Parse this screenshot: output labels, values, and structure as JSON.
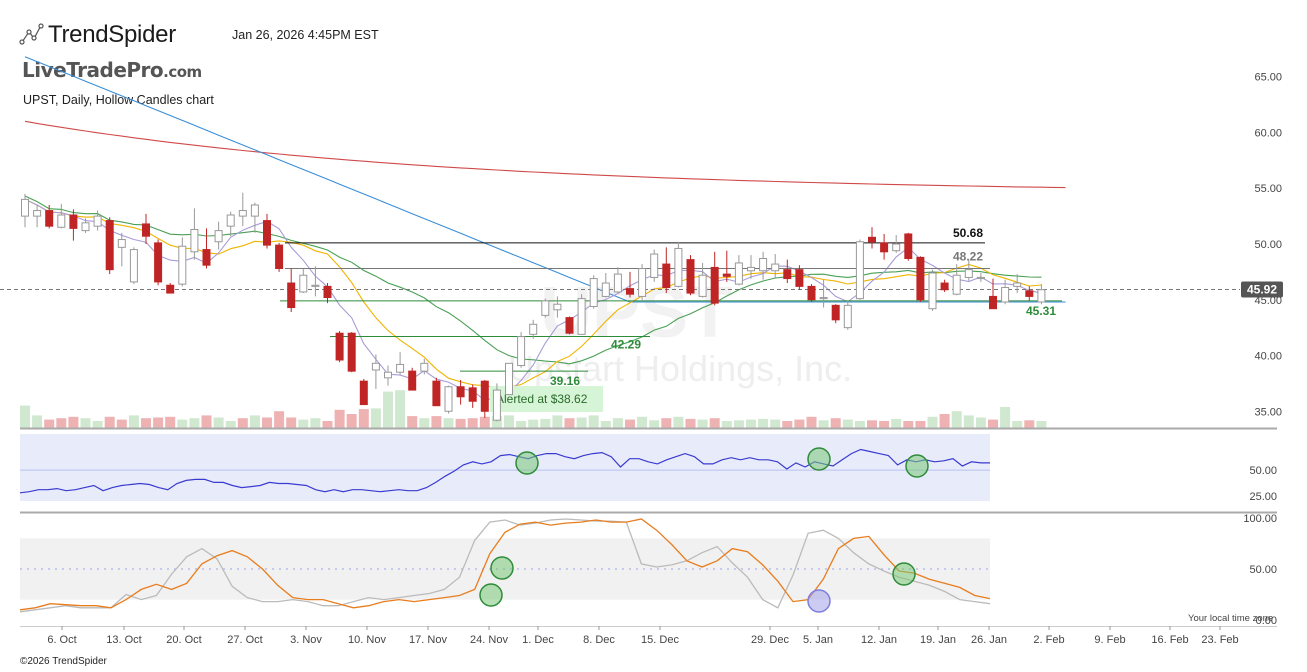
{
  "header": {
    "brand": "TrendSpider",
    "timestamp": "Jan 26, 2026 4:45PM EST",
    "site_watermark": "LiveTradePro",
    "site_watermark_tld": ".com",
    "chart_description": "UPST, Daily, Hollow Candles chart",
    "watermark_ticker": "UPST",
    "watermark_company": "Upstart Holdings, Inc.",
    "copyright": "©2026 TrendSpider",
    "timezone_note": "Your local time zone"
  },
  "colors": {
    "up": "#c8c8c8",
    "down": "#c02525",
    "ma_red": "#d04a4a",
    "ma_blue": "#3a8ed8",
    "ma_green": "#4aa055",
    "ma_yellow": "#f0b400",
    "ma_lavender": "#a89cd8",
    "level_green": "#2e8b3a",
    "rsi_line": "#3a3ad0",
    "stoch_k": "#e87d1e",
    "stoch_d": "#bbbbbb"
  },
  "chart_data": {
    "type": "candlestick",
    "symbol": "UPST",
    "interval": "Daily",
    "y_ticks": [
      "65.00",
      "60.00",
      "55.00",
      "50.00",
      "45.00",
      "40.00",
      "35.00"
    ],
    "ylim": [
      33.5,
      66.5
    ],
    "x_ticks": [
      "6. Oct",
      "13. Oct",
      "20. Oct",
      "27. Oct",
      "3. Nov",
      "10. Nov",
      "17. Nov",
      "24. Nov",
      "1. Dec",
      "8. Dec",
      "15. Dec",
      "29. Dec",
      "5. Jan",
      "12. Jan",
      "19. Jan",
      "26. Jan",
      "2. Feb",
      "9. Feb",
      "16. Feb",
      "23. Feb"
    ],
    "last_price": "45.92",
    "levels": [
      {
        "label": "50.68",
        "value": 50.1,
        "type": "resistance"
      },
      {
        "label": "48.22",
        "value": 47.8,
        "type": "neutral"
      },
      {
        "label": "45.31",
        "value": 44.9,
        "type": "support"
      },
      {
        "label": "42.29",
        "value": 41.7,
        "type": "support"
      },
      {
        "label": "39.16",
        "value": 38.6,
        "type": "support"
      }
    ],
    "alert_label": "Alerted at $38.62",
    "candles": [
      {
        "o": 52.5,
        "h": 54.5,
        "l": 51.5,
        "c": 54.0
      },
      {
        "o": 52.5,
        "h": 53.5,
        "l": 51.5,
        "c": 53.0
      },
      {
        "o": 53.0,
        "h": 53.5,
        "l": 51.4,
        "c": 51.6
      },
      {
        "o": 51.5,
        "h": 53.6,
        "l": 51.4,
        "c": 52.6
      },
      {
        "o": 52.6,
        "h": 53.1,
        "l": 50.3,
        "c": 51.4
      },
      {
        "o": 51.2,
        "h": 52.3,
        "l": 51.0,
        "c": 51.9
      },
      {
        "o": 51.6,
        "h": 53.0,
        "l": 51.2,
        "c": 52.5
      },
      {
        "o": 52.1,
        "h": 52.4,
        "l": 47.3,
        "c": 47.7
      },
      {
        "o": 49.7,
        "h": 51.0,
        "l": 48.0,
        "c": 50.4
      },
      {
        "o": 46.6,
        "h": 49.7,
        "l": 46.4,
        "c": 49.5
      },
      {
        "o": 51.8,
        "h": 52.7,
        "l": 50.0,
        "c": 50.7
      },
      {
        "o": 50.1,
        "h": 50.4,
        "l": 46.3,
        "c": 46.6
      },
      {
        "o": 46.3,
        "h": 46.5,
        "l": 45.6,
        "c": 45.6
      },
      {
        "o": 46.4,
        "h": 50.6,
        "l": 46.2,
        "c": 49.8
      },
      {
        "o": 49.3,
        "h": 53.2,
        "l": 48.6,
        "c": 51.3
      },
      {
        "o": 49.5,
        "h": 51.4,
        "l": 47.8,
        "c": 48.1
      },
      {
        "o": 50.2,
        "h": 52.0,
        "l": 49.5,
        "c": 51.2
      },
      {
        "o": 51.6,
        "h": 52.9,
        "l": 50.7,
        "c": 52.6
      },
      {
        "o": 52.5,
        "h": 54.6,
        "l": 51.6,
        "c": 53.0
      },
      {
        "o": 52.5,
        "h": 53.7,
        "l": 51.0,
        "c": 53.5
      },
      {
        "o": 52.1,
        "h": 52.7,
        "l": 49.6,
        "c": 49.9
      },
      {
        "o": 49.9,
        "h": 50.1,
        "l": 47.5,
        "c": 47.8
      },
      {
        "o": 46.5,
        "h": 47.8,
        "l": 43.9,
        "c": 44.3
      },
      {
        "o": 45.7,
        "h": 47.8,
        "l": 45.6,
        "c": 47.2
      },
      {
        "o": 46.2,
        "h": 48.0,
        "l": 45.3,
        "c": 46.3
      },
      {
        "o": 46.2,
        "h": 46.5,
        "l": 44.7,
        "c": 45.2
      },
      {
        "o": 42.0,
        "h": 42.2,
        "l": 39.4,
        "c": 39.6
      },
      {
        "o": 42.0,
        "h": 42.1,
        "l": 38.5,
        "c": 38.6
      },
      {
        "o": 37.7,
        "h": 37.9,
        "l": 35.6,
        "c": 35.6
      },
      {
        "o": 38.7,
        "h": 40.1,
        "l": 37.0,
        "c": 39.3
      },
      {
        "o": 38.0,
        "h": 39.1,
        "l": 37.3,
        "c": 38.5
      },
      {
        "o": 38.5,
        "h": 40.3,
        "l": 38.3,
        "c": 39.2
      },
      {
        "o": 38.6,
        "h": 38.9,
        "l": 36.9,
        "c": 36.9
      },
      {
        "o": 38.6,
        "h": 39.7,
        "l": 38.3,
        "c": 39.3
      },
      {
        "o": 37.7,
        "h": 38.0,
        "l": 35.5,
        "c": 35.5
      },
      {
        "o": 35.0,
        "h": 37.3,
        "l": 34.8,
        "c": 37.2
      },
      {
        "o": 37.2,
        "h": 37.8,
        "l": 35.6,
        "c": 36.3
      },
      {
        "o": 37.1,
        "h": 37.4,
        "l": 35.3,
        "c": 35.9
      },
      {
        "o": 37.7,
        "h": 37.8,
        "l": 34.4,
        "c": 35.0
      },
      {
        "o": 34.2,
        "h": 37.5,
        "l": 34.1,
        "c": 36.9
      },
      {
        "o": 36.5,
        "h": 39.3,
        "l": 36.5,
        "c": 39.3
      },
      {
        "o": 39.1,
        "h": 42.1,
        "l": 38.9,
        "c": 41.7
      },
      {
        "o": 41.9,
        "h": 43.2,
        "l": 41.5,
        "c": 42.8
      },
      {
        "o": 43.6,
        "h": 45.1,
        "l": 43.4,
        "c": 44.9
      },
      {
        "o": 44.1,
        "h": 45.3,
        "l": 43.4,
        "c": 44.6
      },
      {
        "o": 43.4,
        "h": 43.5,
        "l": 41.9,
        "c": 42.0
      },
      {
        "o": 41.9,
        "h": 45.5,
        "l": 41.9,
        "c": 45.1
      },
      {
        "o": 44.4,
        "h": 47.2,
        "l": 44.2,
        "c": 46.9
      },
      {
        "o": 45.3,
        "h": 47.4,
        "l": 45.2,
        "c": 46.5
      },
      {
        "o": 45.7,
        "h": 47.9,
        "l": 45.6,
        "c": 47.3
      },
      {
        "o": 46.0,
        "h": 47.5,
        "l": 45.2,
        "c": 45.5
      },
      {
        "o": 45.3,
        "h": 48.2,
        "l": 44.9,
        "c": 47.8
      },
      {
        "o": 47.0,
        "h": 49.5,
        "l": 46.6,
        "c": 49.1
      },
      {
        "o": 48.2,
        "h": 49.7,
        "l": 45.6,
        "c": 46.1
      },
      {
        "o": 46.2,
        "h": 50.2,
        "l": 46.1,
        "c": 49.6
      },
      {
        "o": 48.6,
        "h": 49.0,
        "l": 45.4,
        "c": 45.6
      },
      {
        "o": 45.3,
        "h": 48.3,
        "l": 45.2,
        "c": 47.2
      },
      {
        "o": 47.9,
        "h": 49.3,
        "l": 44.5,
        "c": 44.7
      },
      {
        "o": 47.3,
        "h": 49.4,
        "l": 46.6,
        "c": 47.1
      },
      {
        "o": 46.4,
        "h": 49.0,
        "l": 46.3,
        "c": 48.3
      },
      {
        "o": 47.6,
        "h": 49.0,
        "l": 46.9,
        "c": 47.9
      },
      {
        "o": 47.6,
        "h": 49.3,
        "l": 46.8,
        "c": 48.7
      },
      {
        "o": 47.6,
        "h": 49.1,
        "l": 47.0,
        "c": 48.2
      },
      {
        "o": 47.7,
        "h": 48.6,
        "l": 46.5,
        "c": 46.9
      },
      {
        "o": 47.7,
        "h": 48.1,
        "l": 45.9,
        "c": 46.2
      },
      {
        "o": 46.2,
        "h": 46.4,
        "l": 44.8,
        "c": 45.0
      },
      {
        "o": 45.1,
        "h": 46.8,
        "l": 44.3,
        "c": 45.2
      },
      {
        "o": 44.5,
        "h": 44.6,
        "l": 42.9,
        "c": 43.2
      },
      {
        "o": 42.5,
        "h": 44.8,
        "l": 42.3,
        "c": 44.5
      },
      {
        "o": 45.1,
        "h": 50.4,
        "l": 45.0,
        "c": 50.2
      },
      {
        "o": 50.6,
        "h": 51.5,
        "l": 49.6,
        "c": 50.2
      },
      {
        "o": 50.1,
        "h": 50.9,
        "l": 48.6,
        "c": 49.3
      },
      {
        "o": 49.4,
        "h": 50.8,
        "l": 49.2,
        "c": 50.0
      },
      {
        "o": 50.9,
        "h": 51.0,
        "l": 48.5,
        "c": 48.7
      },
      {
        "o": 48.8,
        "h": 48.9,
        "l": 44.8,
        "c": 45.0
      },
      {
        "o": 44.2,
        "h": 47.7,
        "l": 44.0,
        "c": 47.4
      },
      {
        "o": 46.5,
        "h": 46.8,
        "l": 45.7,
        "c": 45.9
      },
      {
        "o": 45.5,
        "h": 48.2,
        "l": 45.4,
        "c": 47.2
      },
      {
        "o": 47.0,
        "h": 48.6,
        "l": 46.7,
        "c": 47.7
      },
      {
        "o": 46.9,
        "h": 47.4,
        "l": 46.6,
        "c": 47.0
      },
      {
        "o": 45.3,
        "h": 46.9,
        "l": 44.2,
        "c": 44.2
      },
      {
        "o": 44.8,
        "h": 46.8,
        "l": 44.6,
        "c": 46.1
      },
      {
        "o": 46.2,
        "h": 47.3,
        "l": 45.6,
        "c": 46.5
      },
      {
        "o": 45.8,
        "h": 46.2,
        "l": 44.9,
        "c": 45.3
      },
      {
        "o": 44.8,
        "h": 46.4,
        "l": 44.6,
        "c": 45.9
      }
    ],
    "volume_up": [
      true,
      true,
      false,
      false,
      false,
      true,
      true,
      false,
      false,
      true,
      false,
      false,
      false,
      true,
      true,
      false,
      true,
      true,
      false,
      true,
      false,
      false,
      false,
      true,
      true,
      false,
      false,
      false,
      false,
      true,
      true,
      true,
      false,
      true,
      false,
      true,
      false,
      false,
      false,
      true,
      true,
      true,
      true,
      true,
      true,
      false,
      true,
      true,
      true,
      true,
      false,
      true,
      true,
      false,
      true,
      false,
      true,
      false,
      true,
      true,
      true,
      true,
      true,
      false,
      false,
      false,
      true,
      false,
      true,
      true,
      false,
      false,
      true,
      false,
      false,
      true,
      false,
      true,
      true,
      true,
      false,
      true,
      true,
      false,
      true
    ],
    "volume": [
      0.32,
      0.18,
      0.12,
      0.14,
      0.16,
      0.14,
      0.1,
      0.16,
      0.12,
      0.18,
      0.14,
      0.15,
      0.16,
      0.12,
      0.14,
      0.18,
      0.15,
      0.1,
      0.14,
      0.18,
      0.15,
      0.24,
      0.15,
      0.12,
      0.14,
      0.1,
      0.26,
      0.2,
      0.27,
      0.28,
      0.52,
      0.54,
      0.17,
      0.14,
      0.17,
      0.14,
      0.13,
      0.14,
      0.16,
      0.17,
      0.18,
      0.1,
      0.12,
      0.13,
      0.18,
      0.14,
      0.15,
      0.18,
      0.1,
      0.14,
      0.12,
      0.16,
      0.11,
      0.14,
      0.16,
      0.13,
      0.12,
      0.14,
      0.1,
      0.11,
      0.12,
      0.13,
      0.12,
      0.1,
      0.12,
      0.16,
      0.11,
      0.14,
      0.12,
      0.1,
      0.11,
      0.1,
      0.13,
      0.1,
      0.1,
      0.16,
      0.2,
      0.24,
      0.18,
      0.15,
      0.12,
      0.3,
      0.1,
      0.11,
      0.1
    ],
    "rsi": {
      "yticks": [
        "50.00",
        "25.00"
      ],
      "band": [
        30,
        70
      ],
      "values": [
        28,
        29,
        31,
        31,
        32,
        30,
        31,
        33,
        35,
        30,
        33,
        35,
        36,
        37,
        36,
        33,
        31,
        37,
        40,
        41,
        41,
        38,
        38,
        35,
        33,
        34,
        35,
        38,
        37,
        37,
        36,
        35,
        31,
        29,
        31,
        29,
        31,
        31,
        30,
        29,
        30,
        31,
        30,
        30,
        33,
        38,
        44,
        49,
        55,
        58,
        56,
        58,
        64,
        65,
        63,
        61,
        64,
        66,
        66,
        63,
        61,
        64,
        66,
        67,
        63,
        53,
        61,
        61,
        58,
        56,
        60,
        63,
        66,
        63,
        56,
        56,
        60,
        62,
        60,
        62,
        60,
        60,
        58,
        51,
        57,
        53,
        58,
        56,
        54,
        60,
        66,
        70,
        68,
        66,
        64,
        55,
        60,
        58,
        60,
        58,
        59,
        61,
        54,
        58,
        57,
        57
      ]
    },
    "stochastic": {
      "yticks": [
        "100.00",
        "50.00",
        "0.00"
      ],
      "band": [
        20,
        80
      ],
      "k": [
        10,
        12,
        16,
        15,
        14,
        14,
        12,
        20,
        30,
        35,
        30,
        36,
        55,
        63,
        68,
        62,
        50,
        34,
        22,
        20,
        20,
        16,
        12,
        14,
        18,
        20,
        18,
        20,
        22,
        24,
        30,
        65,
        86,
        94,
        96,
        93,
        95,
        96,
        98,
        96,
        96,
        99,
        88,
        74,
        58,
        52,
        58,
        70,
        67,
        54,
        38,
        18,
        20,
        40,
        70,
        80,
        82,
        64,
        48,
        46,
        40,
        36,
        32,
        24,
        21
      ],
      "d": [
        8,
        10,
        12,
        14,
        12,
        12,
        12,
        25,
        20,
        24,
        45,
        62,
        70,
        60,
        33,
        22,
        18,
        18,
        20,
        18,
        14,
        14,
        18,
        22,
        20,
        22,
        24,
        26,
        30,
        42,
        78,
        96,
        98,
        93,
        95,
        98,
        99,
        98,
        97,
        97,
        96,
        55,
        52,
        54,
        58,
        66,
        72,
        56,
        42,
        20,
        12,
        44,
        85,
        88,
        80,
        66,
        55,
        48,
        42,
        38,
        34,
        28,
        20,
        18,
        16
      ]
    }
  }
}
